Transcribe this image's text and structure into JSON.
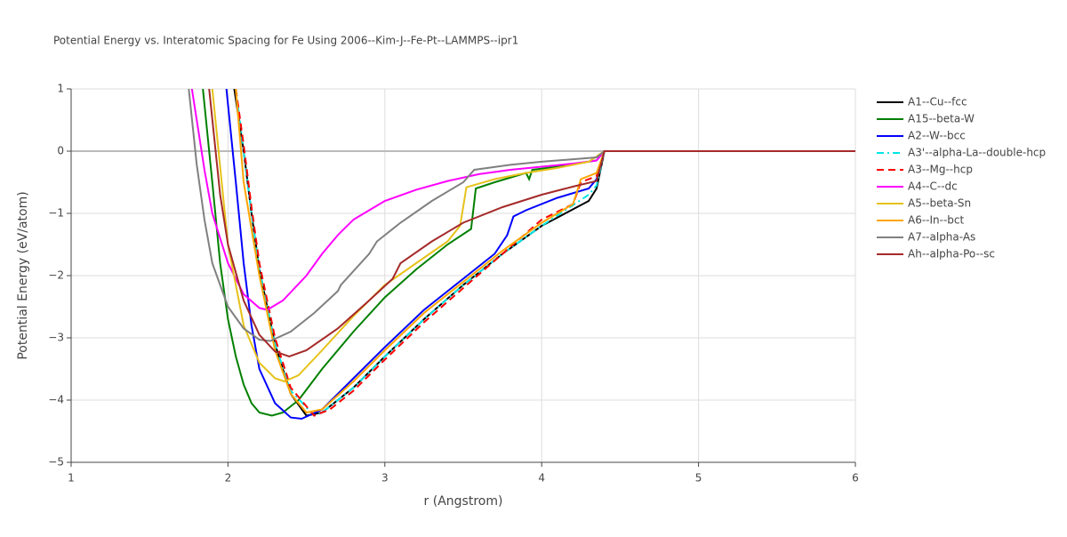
{
  "chart_data": {
    "type": "line",
    "title": "Potential Energy vs. Interatomic Spacing for Fe Using 2006--Kim-J--Fe-Pt--LAMMPS--ipr1",
    "x_label": "r (Angstrom)",
    "y_label": "Potential Energy (eV/atom)",
    "xlim": [
      1,
      6
    ],
    "ylim": [
      -5,
      1
    ],
    "xticks": [
      1,
      2,
      3,
      4,
      5,
      6
    ],
    "yticks": [
      {
        "value": -5,
        "label": "−5"
      },
      {
        "value": -4,
        "label": "−4"
      },
      {
        "value": -3,
        "label": "−3"
      },
      {
        "value": -2,
        "label": "−2"
      },
      {
        "value": -1,
        "label": "−1"
      },
      0,
      1
    ],
    "grid": true,
    "legend": "right",
    "series": [
      {
        "name": "A1--Cu--fcc",
        "color": "#000000",
        "dash": "solid",
        "x": [
          2.04,
          2.1,
          2.15,
          2.2,
          2.3,
          2.4,
          2.5,
          2.6,
          2.8,
          3.0,
          3.25,
          3.5,
          3.75,
          4.0,
          4.3,
          4.35,
          4.4,
          6
        ],
        "values": [
          1,
          0,
          -1,
          -1.9,
          -3.1,
          -3.9,
          -4.25,
          -4.2,
          -3.8,
          -3.3,
          -2.7,
          -2.15,
          -1.65,
          -1.2,
          -0.8,
          -0.6,
          0,
          0
        ]
      },
      {
        "name": "A15--beta-W",
        "color": "#008000",
        "dash": "solid",
        "x": [
          1.84,
          1.9,
          1.95,
          2.0,
          2.05,
          2.1,
          2.15,
          2.2,
          2.28,
          2.35,
          2.45,
          2.6,
          2.8,
          3.0,
          3.2,
          3.4,
          3.55,
          3.58,
          3.7,
          3.9,
          3.92,
          3.94,
          4.1,
          4.35,
          4.4,
          6
        ],
        "values": [
          1,
          -0.5,
          -1.8,
          -2.7,
          -3.3,
          -3.75,
          -4.05,
          -4.2,
          -4.25,
          -4.2,
          -4.0,
          -3.5,
          -2.9,
          -2.35,
          -1.9,
          -1.5,
          -1.25,
          -0.6,
          -0.5,
          -0.35,
          -0.45,
          -0.3,
          -0.25,
          -0.15,
          0,
          0
        ]
      },
      {
        "name": "A2--W--bcc",
        "color": "#0000ff",
        "dash": "solid",
        "x": [
          1.99,
          2.05,
          2.1,
          2.15,
          2.2,
          2.3,
          2.4,
          2.47,
          2.6,
          2.8,
          3.0,
          3.25,
          3.5,
          3.7,
          3.78,
          3.82,
          3.9,
          4.1,
          4.3,
          4.35,
          4.4,
          6
        ],
        "values": [
          1,
          -0.5,
          -1.8,
          -2.8,
          -3.5,
          -4.05,
          -4.28,
          -4.3,
          -4.15,
          -3.65,
          -3.15,
          -2.55,
          -2.05,
          -1.65,
          -1.35,
          -1.05,
          -0.95,
          -0.75,
          -0.6,
          -0.45,
          0,
          0
        ]
      },
      {
        "name": "A3'--alpha-La--double-hcp",
        "color": "#00e5e5",
        "dash": "dashdot",
        "x": [
          2.05,
          2.1,
          2.15,
          2.2,
          2.3,
          2.4,
          2.55,
          2.6,
          2.8,
          3.0,
          3.25,
          3.5,
          3.75,
          4.0,
          4.3,
          4.35,
          4.4,
          6
        ],
        "values": [
          1,
          0,
          -1,
          -1.9,
          -3.1,
          -3.85,
          -4.25,
          -4.2,
          -3.8,
          -3.3,
          -2.7,
          -2.15,
          -1.65,
          -1.2,
          -0.7,
          -0.55,
          0,
          0
        ]
      },
      {
        "name": "A3--Mg--hcp",
        "color": "#ff0000",
        "dash": "dash",
        "x": [
          2.05,
          2.1,
          2.15,
          2.2,
          2.3,
          2.4,
          2.55,
          2.65,
          2.8,
          3.0,
          3.25,
          3.5,
          3.75,
          4.0,
          4.2,
          4.25,
          4.35,
          4.4,
          6
        ],
        "values": [
          1,
          0.1,
          -0.9,
          -1.8,
          -3.0,
          -3.8,
          -4.25,
          -4.15,
          -3.85,
          -3.35,
          -2.75,
          -2.2,
          -1.65,
          -1.1,
          -0.85,
          -0.5,
          -0.4,
          0,
          0
        ]
      },
      {
        "name": "A4--C--dc",
        "color": "#ff00ff",
        "dash": "solid",
        "x": [
          1.77,
          1.85,
          1.9,
          2.0,
          2.1,
          2.2,
          2.25,
          2.35,
          2.5,
          2.6,
          2.7,
          2.8,
          2.9,
          3.0,
          3.2,
          3.4,
          3.6,
          3.8,
          4.0,
          4.2,
          4.35,
          4.4,
          6
        ],
        "values": [
          1,
          -0.3,
          -1.0,
          -1.8,
          -2.3,
          -2.52,
          -2.55,
          -2.4,
          -2.0,
          -1.65,
          -1.35,
          -1.1,
          -0.95,
          -0.8,
          -0.62,
          -0.48,
          -0.37,
          -0.3,
          -0.25,
          -0.2,
          -0.15,
          0,
          0
        ]
      },
      {
        "name": "A5--beta-Sn",
        "color": "#e6c21a",
        "dash": "solid",
        "x": [
          1.9,
          2.0,
          2.1,
          2.2,
          2.3,
          2.36,
          2.45,
          2.6,
          2.8,
          3.0,
          3.2,
          3.4,
          3.48,
          3.52,
          3.7,
          3.9,
          4.1,
          4.3,
          4.4,
          6
        ],
        "values": [
          1,
          -1.5,
          -2.8,
          -3.4,
          -3.65,
          -3.7,
          -3.6,
          -3.2,
          -2.65,
          -2.15,
          -1.8,
          -1.45,
          -1.2,
          -0.58,
          -0.45,
          -0.35,
          -0.27,
          -0.17,
          0,
          0
        ]
      },
      {
        "name": "A6--In--bct",
        "color": "#ffa500",
        "dash": "solid",
        "x": [
          2.05,
          2.1,
          2.2,
          2.3,
          2.4,
          2.5,
          2.6,
          2.8,
          3.0,
          3.25,
          3.5,
          3.75,
          4.0,
          4.2,
          4.25,
          4.35,
          4.4,
          6
        ],
        "values": [
          1,
          -0.5,
          -2.0,
          -3.2,
          -3.9,
          -4.2,
          -4.15,
          -3.7,
          -3.2,
          -2.6,
          -2.1,
          -1.6,
          -1.15,
          -0.85,
          -0.45,
          -0.35,
          0,
          0
        ]
      },
      {
        "name": "A7--alpha-As",
        "color": "#808080",
        "dash": "solid",
        "x": [
          1.75,
          1.8,
          1.85,
          1.9,
          2.0,
          2.1,
          2.2,
          2.27,
          2.4,
          2.55,
          2.7,
          2.72,
          2.9,
          2.95,
          3.1,
          3.3,
          3.5,
          3.57,
          3.8,
          4.0,
          4.2,
          4.35,
          4.4,
          6
        ],
        "values": [
          1,
          -0.2,
          -1.1,
          -1.8,
          -2.5,
          -2.85,
          -3.03,
          -3.05,
          -2.9,
          -2.6,
          -2.25,
          -2.15,
          -1.65,
          -1.45,
          -1.15,
          -0.8,
          -0.5,
          -0.3,
          -0.22,
          -0.17,
          -0.13,
          -0.1,
          0,
          0
        ]
      },
      {
        "name": "Ah--alpha-Po--sc",
        "color": "#a52a2a",
        "dash": "solid",
        "x": [
          1.88,
          1.95,
          2.0,
          2.1,
          2.2,
          2.3,
          2.39,
          2.5,
          2.7,
          2.9,
          3.05,
          3.1,
          3.3,
          3.5,
          3.75,
          4.0,
          4.2,
          4.35,
          4.4,
          6
        ],
        "values": [
          1,
          -0.7,
          -1.5,
          -2.4,
          -2.95,
          -3.22,
          -3.3,
          -3.2,
          -2.85,
          -2.4,
          -2.05,
          -1.8,
          -1.45,
          -1.15,
          -0.9,
          -0.7,
          -0.57,
          -0.48,
          0,
          0
        ]
      }
    ]
  }
}
